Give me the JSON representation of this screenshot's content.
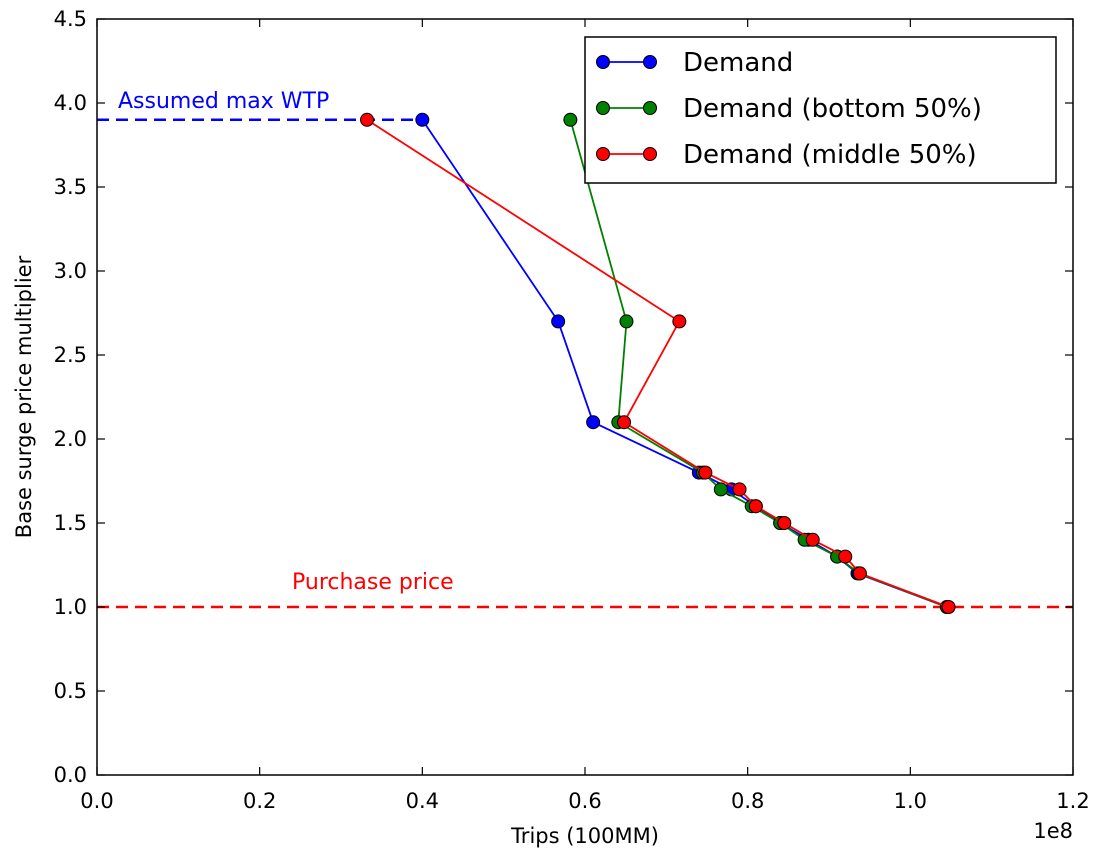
{
  "chart_data": {
    "type": "line",
    "title": "",
    "xlabel": "Trips (100MM)",
    "ylabel": "Base surge price multiplier",
    "x_offset_label": "1e8",
    "xlim": [
      0.0,
      1.2
    ],
    "ylim": [
      0.0,
      4.5
    ],
    "x_ticks": [
      "0.0",
      "0.2",
      "0.4",
      "0.6",
      "0.8",
      "1.0",
      "1.2"
    ],
    "y_ticks": [
      "0.0",
      "0.5",
      "1.0",
      "1.5",
      "2.0",
      "2.5",
      "3.0",
      "3.5",
      "4.0",
      "4.5"
    ],
    "grid": false,
    "legend_position": "top-right",
    "series": [
      {
        "name": "Demand",
        "color": "#0000ff",
        "points": [
          [
            0.4,
            3.9
          ],
          [
            0.567,
            2.7
          ],
          [
            0.61,
            2.1
          ],
          [
            0.74,
            1.8
          ],
          [
            0.78,
            1.7
          ],
          [
            0.81,
            1.6
          ],
          [
            0.84,
            1.5
          ],
          [
            0.875,
            1.4
          ],
          [
            0.91,
            1.3
          ],
          [
            0.935,
            1.2
          ],
          [
            1.045,
            1.0
          ]
        ]
      },
      {
        "name": "Demand (bottom 50%)",
        "color": "#008000",
        "points": [
          [
            0.582,
            3.9
          ],
          [
            0.651,
            2.7
          ],
          [
            0.641,
            2.1
          ],
          [
            0.745,
            1.8
          ],
          [
            0.767,
            1.7
          ],
          [
            0.805,
            1.6
          ],
          [
            0.84,
            1.5
          ],
          [
            0.87,
            1.4
          ],
          [
            0.91,
            1.3
          ],
          [
            0.937,
            1.2
          ],
          [
            1.045,
            1.0
          ]
        ]
      },
      {
        "name": "Demand (middle 50%)",
        "color": "#ff0000",
        "points": [
          [
            0.332,
            3.9
          ],
          [
            0.716,
            2.7
          ],
          [
            0.648,
            2.1
          ],
          [
            0.748,
            1.8
          ],
          [
            0.79,
            1.7
          ],
          [
            0.81,
            1.6
          ],
          [
            0.845,
            1.5
          ],
          [
            0.88,
            1.4
          ],
          [
            0.92,
            1.3
          ],
          [
            0.938,
            1.2
          ],
          [
            1.047,
            1.0
          ]
        ]
      }
    ],
    "reference_lines": [
      {
        "label": "Assumed max WTP",
        "y": 3.9,
        "x_range": [
          0.0,
          0.4
        ],
        "color": "#0000ff",
        "style": "dashed"
      },
      {
        "label": "Purchase price",
        "y": 1.0,
        "x_range": [
          0.0,
          1.2
        ],
        "color": "#ff0000",
        "style": "dashed"
      }
    ]
  }
}
